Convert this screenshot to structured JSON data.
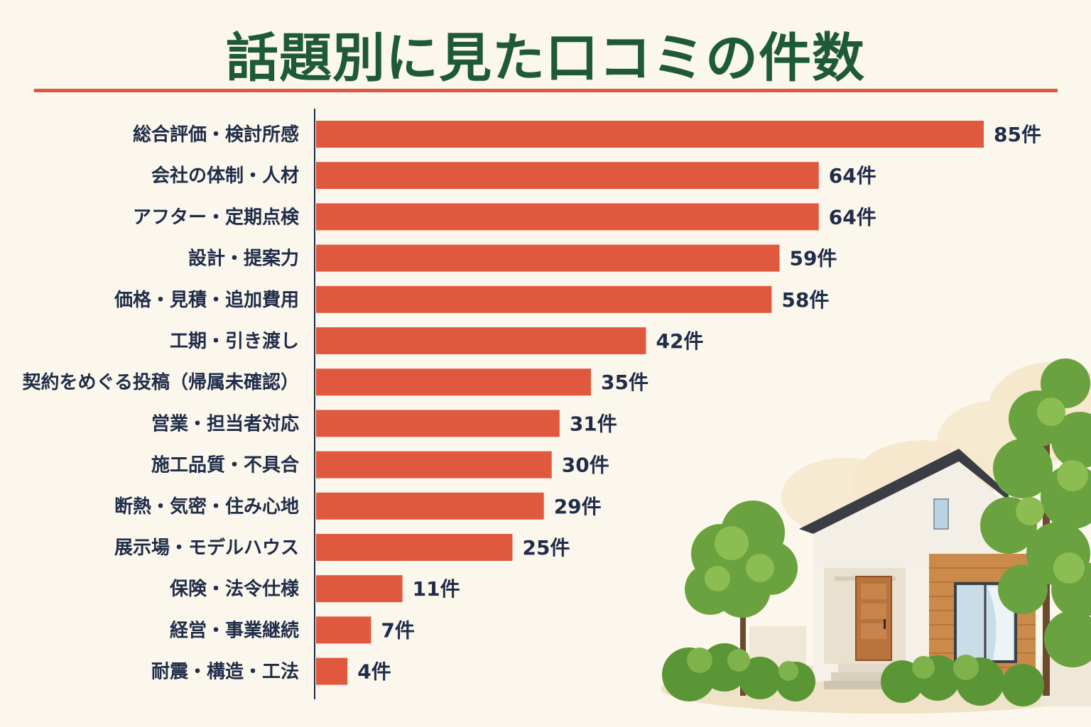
{
  "chart_data": {
    "type": "bar",
    "orientation": "horizontal",
    "title": "話題別に見た口コミの件数",
    "categories": [
      "総合評価・検討所感",
      "会社の体制・人材",
      "アフター・定期点検",
      "設計・提案力",
      "価格・見積・追加費用",
      "工期・引き渡し",
      "契約をめぐる投稿（帰属未確認）",
      "営業・担当者対応",
      "施工品質・不具合",
      "断熱・気密・住み心地",
      "展示場・モデルハウス",
      "保険・法令仕様",
      "経営・事業継続",
      "耐震・構造・工法"
    ],
    "values": [
      85,
      64,
      64,
      59,
      58,
      42,
      35,
      31,
      30,
      29,
      25,
      11,
      7,
      4
    ],
    "value_labels": [
      "85件",
      "64件",
      "64件",
      "59件",
      "58件",
      "42件",
      "35件",
      "31件",
      "30件",
      "29件",
      "25件",
      "11件",
      "7件",
      "4件"
    ],
    "xlabel": "",
    "ylabel": "",
    "xlim": [
      0,
      85
    ],
    "grid": false,
    "legend": "none"
  },
  "colors": {
    "bar": "#e0593f",
    "title": "#1f5a36",
    "text": "#1f2d4a",
    "background": "#fcf7ec",
    "rule": "#e0593f"
  },
  "illustration": {
    "icon": "house-with-trees-illustration"
  }
}
